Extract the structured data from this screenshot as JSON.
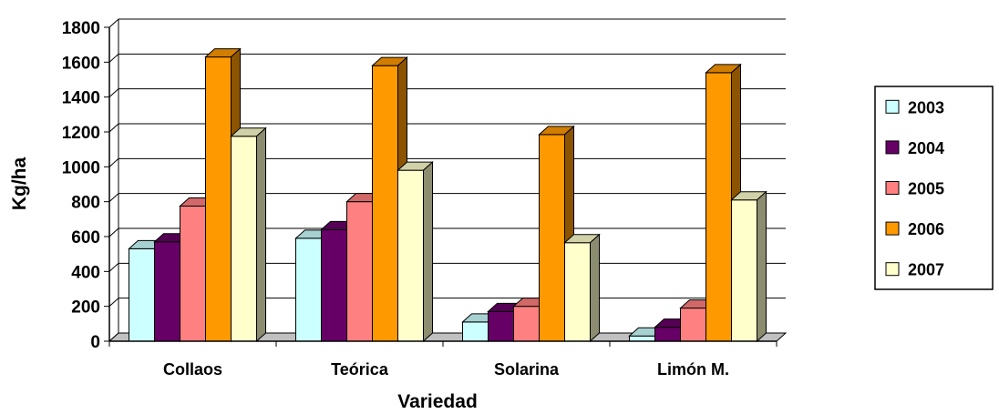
{
  "chart_data": {
    "type": "bar",
    "categories": [
      "Collaos",
      "Teórica",
      "Solarina",
      "Limón M."
    ],
    "series": [
      {
        "name": "2003",
        "color": "#CCFFFF",
        "values": [
          530,
          590,
          110,
          30
        ]
      },
      {
        "name": "2004",
        "color": "#660066",
        "values": [
          570,
          640,
          170,
          80
        ]
      },
      {
        "name": "2005",
        "color": "#FF8080",
        "values": [
          775,
          800,
          200,
          190
        ]
      },
      {
        "name": "2006",
        "color": "#FF9900",
        "values": [
          1630,
          1580,
          1185,
          1540
        ]
      },
      {
        "name": "2007",
        "color": "#FFFFCC",
        "values": [
          1175,
          980,
          565,
          810
        ]
      }
    ],
    "xlabel": "Variedad",
    "ylabel": "Kg/ha",
    "ylim": [
      0,
      1800
    ],
    "yticks": [
      "0",
      "200",
      "400",
      "600",
      "800",
      "1000",
      "1200",
      "1400",
      "1600",
      "1800"
    ],
    "grid": true,
    "chart_style": "3d-clustered-column",
    "legend_position": "right"
  }
}
